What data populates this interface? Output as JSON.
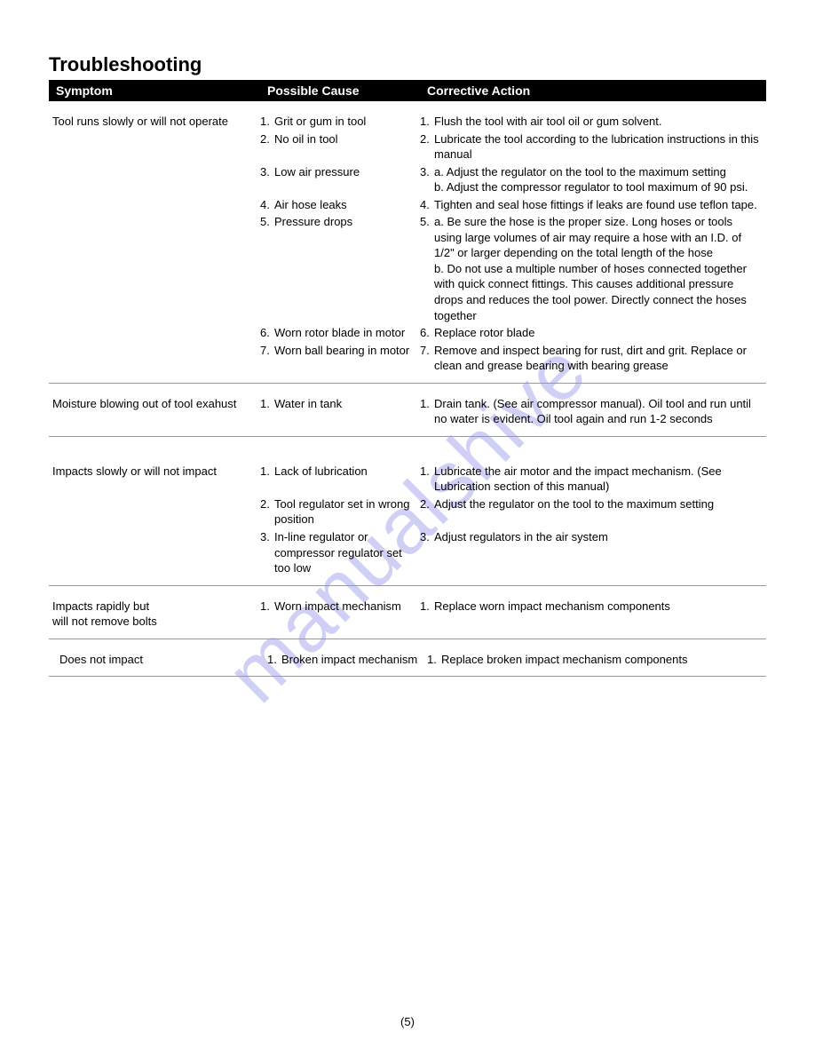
{
  "title": "Troubleshooting",
  "watermark": "manualshive",
  "page_number": "(5)",
  "columns": {
    "symptom": "Symptom",
    "cause": "Possible Cause",
    "action": "Corrective Action"
  },
  "sections": [
    {
      "symptom": "Tool runs slowly or will not operate",
      "rows": [
        {
          "n": "1.",
          "cause": "Grit or gum in tool",
          "action": "Flush the tool with air tool oil or gum solvent."
        },
        {
          "n": "2.",
          "cause": "No oil in tool",
          "action": "Lubricate the tool according to the lubrication instructions in this manual"
        },
        {
          "n": "3.",
          "cause": "Low air pressure",
          "action": "a.  Adjust the regulator on the tool to the maximum setting\nb.  Adjust the compressor regulator to tool maximum of 90 psi."
        },
        {
          "n": "4.",
          "cause": "Air hose leaks",
          "action": "Tighten and seal hose fittings if leaks are found use teflon tape."
        },
        {
          "n": "5.",
          "cause": "Pressure drops",
          "action": "a.  Be sure the hose is the proper size. Long hoses or tools using large volumes of air may require a hose with an I.D. of 1/2\" or larger depending on the total length of the hose\nb.  Do not use a multiple number of hoses connected together with quick connect fittings. This causes additional pressure drops and reduces the tool power. Directly connect the hoses together"
        },
        {
          "n": "6.",
          "cause": "Worn rotor blade in motor",
          "action": "Replace rotor blade"
        },
        {
          "n": "7.",
          "cause": "Worn ball bearing in motor",
          "action": "Remove and inspect bearing for rust, dirt and grit. Replace or clean and grease bearing with bearing grease"
        }
      ]
    },
    {
      "symptom": "Moisture blowing out of tool exahust",
      "rows": [
        {
          "n": "1.",
          "cause": "Water in tank",
          "action": "Drain tank. (See air compressor manual). Oil tool and run until no water is evident. Oil tool again and run 1-2 seconds"
        }
      ]
    },
    {
      "symptom": "Impacts slowly or will not impact",
      "rows": [
        {
          "n": "1.",
          "cause": "Lack of lubrication",
          "action": "Lubricate the air motor and the impact mechanism. (See Lubrication section of this manual)"
        },
        {
          "n": "2.",
          "cause": "Tool regulator set in wrong position",
          "action": "Adjust the regulator on the tool to the maximum setting"
        },
        {
          "n": "3.",
          "cause": "In-line regulator or compressor regulator set too low",
          "action": "Adjust regulators in the air system"
        }
      ]
    },
    {
      "symptom": "Impacts rapidly but\nwill not remove bolts",
      "rows": [
        {
          "n": "1.",
          "cause": "Worn impact mechanism",
          "action": "Replace worn impact mechanism components"
        }
      ]
    },
    {
      "symptom": "Does not impact",
      "rows": [
        {
          "n": "1.",
          "cause": "Broken impact mechanism",
          "action": "Replace broken impact mechanism components"
        }
      ]
    }
  ]
}
